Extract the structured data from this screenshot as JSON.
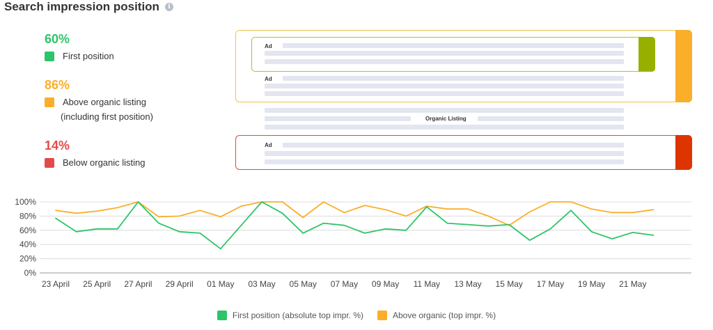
{
  "title": "Search impression position",
  "info_icon": "info-icon",
  "colors": {
    "first": "#2ec468",
    "above": "#fbae2a",
    "below": "#e24a4a",
    "first_bar": "#97b000",
    "below_bar": "#de3400"
  },
  "stats": {
    "first": {
      "pct": "60%",
      "label": "First position"
    },
    "above": {
      "pct": "86%",
      "label": "Above organic listing",
      "sub": "(including first position)"
    },
    "below": {
      "pct": "14%",
      "label": "Below organic listing"
    }
  },
  "serp": {
    "ad_label": "Ad",
    "organic_label": "Organic Listing"
  },
  "chart_data": {
    "type": "line",
    "x": [
      "23 April",
      "24 April",
      "25 April",
      "26 April",
      "27 April",
      "28 April",
      "29 April",
      "30 April",
      "01 May",
      "02 May",
      "03 May",
      "04 May",
      "05 May",
      "06 May",
      "07 May",
      "08 May",
      "09 May",
      "10 May",
      "11 May",
      "12 May",
      "13 May",
      "14 May",
      "15 May",
      "16 May",
      "17 May",
      "18 May",
      "19 May",
      "20 May",
      "21 May",
      "22 May"
    ],
    "tick_labels": [
      "23 April",
      "25 April",
      "27 April",
      "29 April",
      "01 May",
      "03 May",
      "05 May",
      "07 May",
      "09 May",
      "11 May",
      "13 May",
      "15 May",
      "17 May",
      "19 May",
      "21 May"
    ],
    "y_ticks": [
      "0%",
      "20%",
      "40%",
      "60%",
      "80%",
      "100%"
    ],
    "ylim": [
      0,
      100
    ],
    "grid": true,
    "series": [
      {
        "name": "First position (absolute top impr. %)",
        "color": "#2ec468",
        "values": [
          77,
          58,
          62,
          62,
          100,
          70,
          58,
          56,
          34,
          67,
          100,
          84,
          56,
          70,
          67,
          56,
          62,
          60,
          93,
          70,
          68,
          66,
          68,
          46,
          62,
          88,
          58,
          48,
          57,
          53
        ]
      },
      {
        "name": "Above organic (top impr. %)",
        "color": "#fbae2a",
        "values": [
          88,
          84,
          87,
          92,
          100,
          79,
          80,
          88,
          79,
          94,
          100,
          100,
          78,
          100,
          85,
          95,
          89,
          80,
          94,
          90,
          90,
          80,
          67,
          86,
          100,
          100,
          90,
          85,
          85,
          89
        ]
      }
    ]
  }
}
